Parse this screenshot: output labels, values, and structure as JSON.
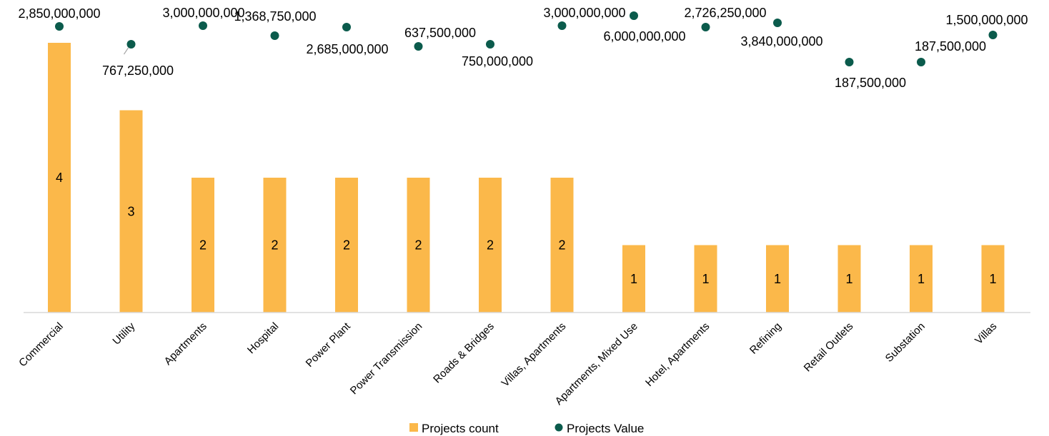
{
  "chart_data": {
    "type": "bar",
    "categories": [
      "Commercial",
      "Utility",
      "Apartments",
      "Hospital",
      "Power Plant",
      "Power Transmission",
      "Roads & Bridges",
      "Villas, Apartments",
      "Apartments, Mixed Use",
      "Hotel, Apartments",
      "Refining",
      "Retail Outlets",
      "Substation",
      "Villas"
    ],
    "series": [
      {
        "name": "Projects count",
        "type": "bar",
        "values": [
          4,
          3,
          2,
          2,
          2,
          2,
          2,
          2,
          1,
          1,
          1,
          1,
          1,
          1
        ],
        "labels": [
          "4",
          "3",
          "2",
          "2",
          "2",
          "2",
          "2",
          "2",
          "1",
          "1",
          "1",
          "1",
          "1",
          "1"
        ]
      },
      {
        "name": "Projects Value",
        "type": "scatter",
        "values": [
          2850000000,
          767250000,
          3000000000,
          1368750000,
          2685000000,
          637500000,
          750000000,
          3000000000,
          6000000000,
          2726250000,
          3840000000,
          187500000,
          187500000,
          1500000000
        ],
        "labels": [
          "2,850,000,000",
          "767,250,000",
          "3,000,000,000",
          "1,368,750,000",
          "2,685,000,000",
          "637,500,000",
          "750,000,000",
          "3,000,000,000",
          "6,000,000,000",
          "2,726,250,000",
          "3,840,000,000",
          "187,500,000",
          "187,500,000",
          "1,500,000,000"
        ]
      }
    ],
    "ylim": [
      0,
      4
    ],
    "grid": false,
    "legend": "bottom"
  },
  "colors": {
    "bar": "#FBB84A",
    "marker": "#0B5B4C",
    "axis": "#D9D9D9",
    "leader": "#A6A6A6"
  }
}
